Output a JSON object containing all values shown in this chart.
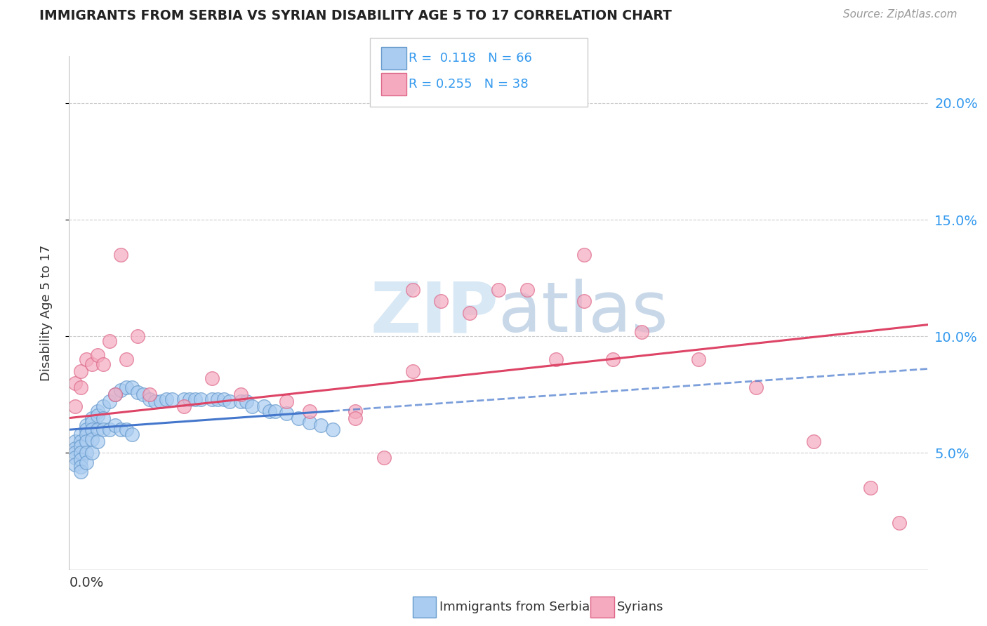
{
  "title": "IMMIGRANTS FROM SERBIA VS SYRIAN DISABILITY AGE 5 TO 17 CORRELATION CHART",
  "source": "Source: ZipAtlas.com",
  "ylabel": "Disability Age 5 to 17",
  "xlim": [
    0.0,
    0.15
  ],
  "ylim": [
    0.0,
    0.22
  ],
  "serbia_color": "#aaccf0",
  "syria_color": "#f5aabf",
  "serbia_edge": "#6699cc",
  "syria_edge": "#dd6688",
  "serbia_line_color": "#4477cc",
  "syria_line_color": "#dd4466",
  "watermark_color": "#d8e8f5",
  "serbia_x": [
    0.001,
    0.001,
    0.001,
    0.001,
    0.001,
    0.002,
    0.002,
    0.002,
    0.002,
    0.002,
    0.002,
    0.002,
    0.003,
    0.003,
    0.003,
    0.003,
    0.003,
    0.003,
    0.004,
    0.004,
    0.004,
    0.004,
    0.004,
    0.005,
    0.005,
    0.005,
    0.005,
    0.006,
    0.006,
    0.006,
    0.007,
    0.007,
    0.008,
    0.008,
    0.009,
    0.009,
    0.01,
    0.01,
    0.011,
    0.011,
    0.012,
    0.013,
    0.014,
    0.015,
    0.016,
    0.017,
    0.018,
    0.02,
    0.021,
    0.022,
    0.023,
    0.025,
    0.026,
    0.027,
    0.028,
    0.03,
    0.031,
    0.032,
    0.034,
    0.035,
    0.036,
    0.038,
    0.04,
    0.042,
    0.044,
    0.046
  ],
  "serbia_y": [
    0.055,
    0.052,
    0.05,
    0.048,
    0.045,
    0.058,
    0.055,
    0.053,
    0.05,
    0.047,
    0.044,
    0.042,
    0.062,
    0.06,
    0.058,
    0.055,
    0.05,
    0.046,
    0.065,
    0.063,
    0.06,
    0.056,
    0.05,
    0.068,
    0.066,
    0.06,
    0.055,
    0.07,
    0.065,
    0.06,
    0.072,
    0.06,
    0.075,
    0.062,
    0.077,
    0.06,
    0.078,
    0.06,
    0.078,
    0.058,
    0.076,
    0.075,
    0.073,
    0.072,
    0.072,
    0.073,
    0.073,
    0.073,
    0.073,
    0.073,
    0.073,
    0.073,
    0.073,
    0.073,
    0.072,
    0.072,
    0.072,
    0.07,
    0.07,
    0.068,
    0.068,
    0.067,
    0.065,
    0.063,
    0.062,
    0.06
  ],
  "syria_x": [
    0.001,
    0.001,
    0.002,
    0.002,
    0.003,
    0.004,
    0.005,
    0.006,
    0.007,
    0.008,
    0.009,
    0.01,
    0.012,
    0.014,
    0.02,
    0.025,
    0.03,
    0.038,
    0.042,
    0.05,
    0.055,
    0.06,
    0.065,
    0.07,
    0.075,
    0.08,
    0.085,
    0.09,
    0.095,
    0.1,
    0.11,
    0.12,
    0.13,
    0.14,
    0.145,
    0.05,
    0.06,
    0.09
  ],
  "syria_y": [
    0.08,
    0.07,
    0.085,
    0.078,
    0.09,
    0.088,
    0.092,
    0.088,
    0.098,
    0.075,
    0.135,
    0.09,
    0.1,
    0.075,
    0.07,
    0.082,
    0.075,
    0.072,
    0.068,
    0.068,
    0.048,
    0.12,
    0.115,
    0.11,
    0.12,
    0.12,
    0.09,
    0.115,
    0.09,
    0.102,
    0.09,
    0.078,
    0.055,
    0.035,
    0.02,
    0.065,
    0.085,
    0.135
  ],
  "serbia_line_x": [
    0.0,
    0.046
  ],
  "serbia_line_y": [
    0.06,
    0.068
  ],
  "syria_line_x": [
    0.0,
    0.15
  ],
  "syria_line_y": [
    0.065,
    0.105
  ]
}
